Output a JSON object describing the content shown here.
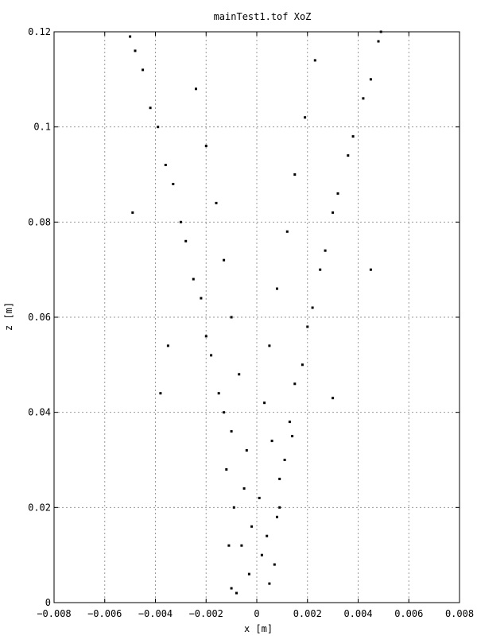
{
  "chart_data": {
    "type": "scatter",
    "title": "mainTest1.tof XoZ",
    "xlabel": "x [m]",
    "ylabel": "z [m]",
    "xlim": [
      -0.008,
      0.008
    ],
    "ylim": [
      0,
      0.12
    ],
    "grid": true,
    "legend": "none",
    "x_ticks": [
      -0.008,
      -0.006,
      -0.004,
      -0.002,
      0,
      0.002,
      0.004,
      0.006,
      0.008
    ],
    "x_tick_labels": [
      "−0.008",
      "−0.006",
      "−0.004",
      "−0.002",
      "0",
      "0.002",
      "0.004",
      "0.006",
      "0.008"
    ],
    "y_ticks": [
      0,
      0.02,
      0.04,
      0.06,
      0.08,
      0.1,
      0.12
    ],
    "y_tick_labels": [
      "0",
      "0.02",
      "0.04",
      "0.06",
      "0.08",
      "0.1",
      "0.12"
    ],
    "marker_color": "#000000",
    "series": [
      {
        "points": [
          [
            -0.0008,
            0.002
          ],
          [
            0.0005,
            0.004
          ],
          [
            -0.0003,
            0.006
          ],
          [
            0.0007,
            0.008
          ],
          [
            -0.001,
            0.003
          ],
          [
            0.0002,
            0.01
          ],
          [
            -0.0006,
            0.012
          ],
          [
            0.0004,
            0.014
          ],
          [
            -0.0002,
            0.016
          ],
          [
            0.0008,
            0.018
          ],
          [
            -0.0009,
            0.02
          ],
          [
            0.0001,
            0.022
          ],
          [
            -0.0005,
            0.024
          ],
          [
            0.0009,
            0.026
          ],
          [
            -0.0012,
            0.028
          ],
          [
            0.0011,
            0.03
          ],
          [
            -0.0004,
            0.032
          ],
          [
            0.0006,
            0.034
          ],
          [
            -0.001,
            0.036
          ],
          [
            0.0013,
            0.038
          ],
          [
            -0.0013,
            0.04
          ],
          [
            0.0003,
            0.042
          ],
          [
            -0.0015,
            0.044
          ],
          [
            0.0015,
            0.046
          ],
          [
            -0.0007,
            0.048
          ],
          [
            0.0018,
            0.05
          ],
          [
            -0.0018,
            0.052
          ],
          [
            0.0005,
            0.054
          ],
          [
            -0.002,
            0.056
          ],
          [
            0.002,
            0.058
          ],
          [
            -0.001,
            0.06
          ],
          [
            0.0022,
            0.062
          ],
          [
            -0.0022,
            0.064
          ],
          [
            0.0008,
            0.066
          ],
          [
            -0.0025,
            0.068
          ],
          [
            0.0025,
            0.07
          ],
          [
            -0.0013,
            0.072
          ],
          [
            0.0027,
            0.074
          ],
          [
            -0.0028,
            0.076
          ],
          [
            0.0012,
            0.078
          ],
          [
            -0.003,
            0.08
          ],
          [
            0.003,
            0.082
          ],
          [
            -0.0016,
            0.084
          ],
          [
            0.0032,
            0.086
          ],
          [
            -0.0033,
            0.088
          ],
          [
            0.0015,
            0.09
          ],
          [
            -0.0036,
            0.092
          ],
          [
            0.0036,
            0.094
          ],
          [
            -0.002,
            0.096
          ],
          [
            0.0038,
            0.098
          ],
          [
            -0.0039,
            0.1
          ],
          [
            0.0019,
            0.102
          ],
          [
            -0.0042,
            0.104
          ],
          [
            0.0042,
            0.106
          ],
          [
            -0.0024,
            0.108
          ],
          [
            0.0045,
            0.11
          ],
          [
            -0.0045,
            0.112
          ],
          [
            0.0023,
            0.114
          ],
          [
            -0.0048,
            0.116
          ],
          [
            0.0048,
            0.118
          ],
          [
            -0.005,
            0.119
          ],
          [
            0.0049,
            0.12
          ],
          [
            -0.0049,
            0.082
          ],
          [
            0.0045,
            0.07
          ],
          [
            -0.0038,
            0.044
          ],
          [
            0.003,
            0.043
          ],
          [
            0.0014,
            0.035
          ],
          [
            -0.0011,
            0.012
          ],
          [
            0.0009,
            0.02
          ],
          [
            -0.0035,
            0.054
          ]
        ]
      }
    ]
  }
}
